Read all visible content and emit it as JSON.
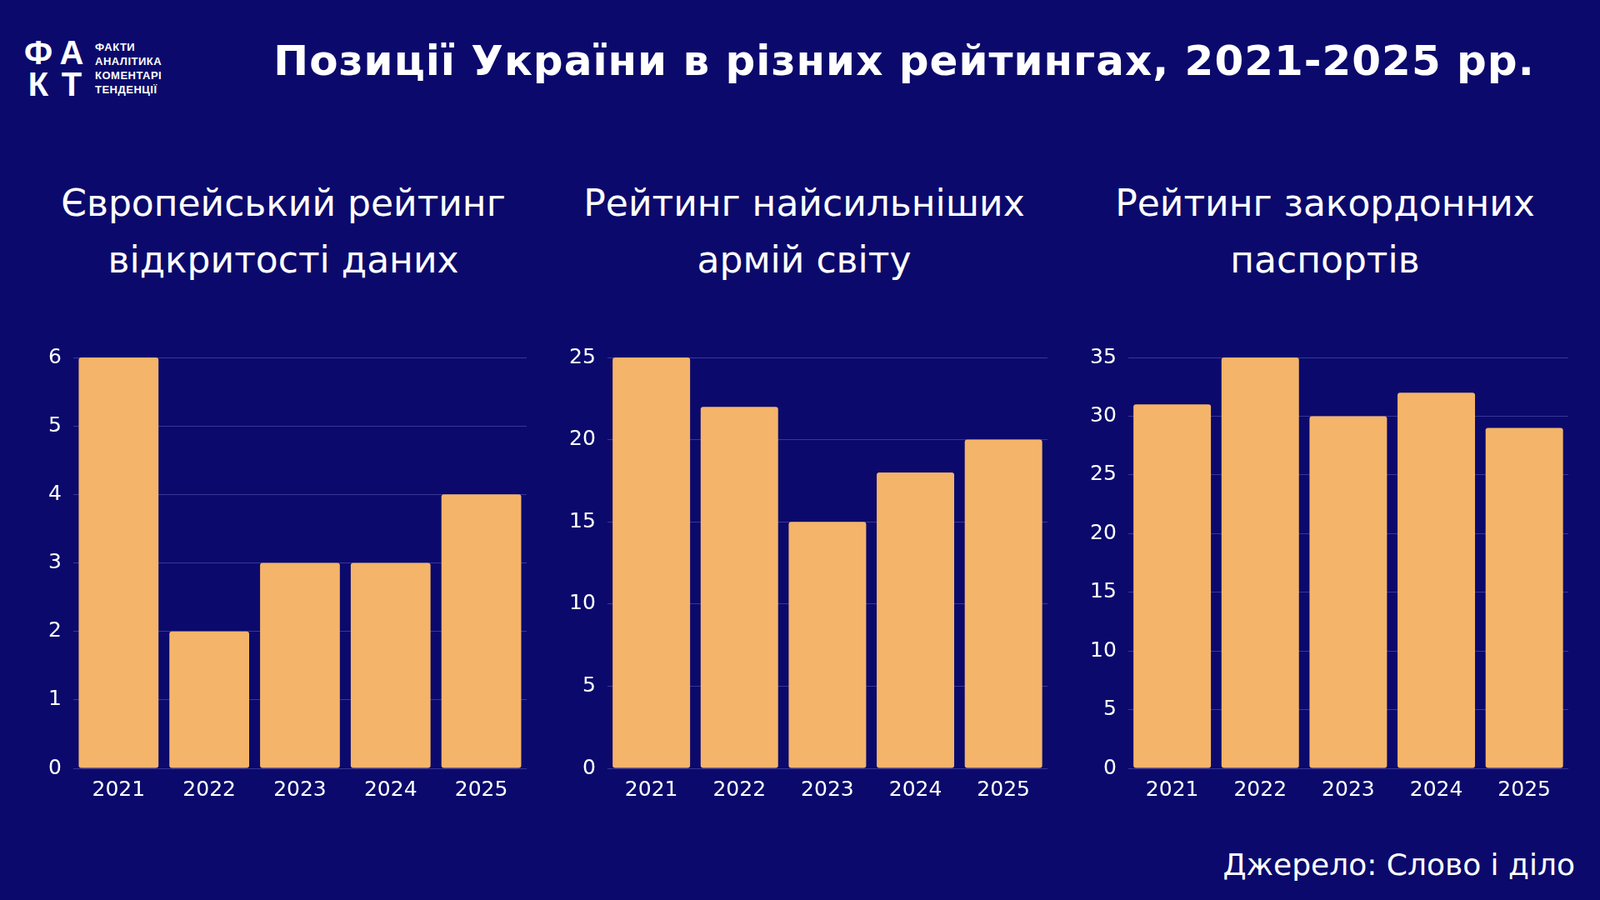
{
  "header": {
    "title": "Позиції України в різних рейтингах, 2021-2025 рр.",
    "logo": {
      "mark": [
        "Ф",
        "А",
        "К",
        "Т"
      ],
      "lines": [
        "ФАКТИ",
        "АНАЛІТИКА",
        "КОМЕНТАРІ",
        "ТЕНДЕНЦІЇ"
      ]
    }
  },
  "source": "Джерело: Слово і діло",
  "chart_data": [
    {
      "type": "bar",
      "title": "Європейський рейтинг відкритості даних",
      "categories": [
        "2021",
        "2022",
        "2023",
        "2024",
        "2025"
      ],
      "values": [
        6,
        2,
        3,
        3,
        4
      ],
      "color": "#f4b46a",
      "ylim": [
        0,
        6
      ],
      "yticks": [
        0,
        1,
        2,
        3,
        4,
        5,
        6
      ],
      "grid": true
    },
    {
      "type": "bar",
      "title": "Рейтинг найсильніших армій світу",
      "categories": [
        "2021",
        "2022",
        "2023",
        "2024",
        "2025"
      ],
      "values": [
        25,
        22,
        15,
        18,
        20
      ],
      "color": "#f4b46a",
      "ylim": [
        0,
        25
      ],
      "yticks": [
        0,
        5,
        10,
        15,
        20,
        25
      ],
      "grid": true
    },
    {
      "type": "bar",
      "title": "Рейтинг закордонних паспортів",
      "categories": [
        "2021",
        "2022",
        "2023",
        "2024",
        "2025"
      ],
      "values": [
        31,
        35,
        30,
        32,
        29
      ],
      "color": "#f4b46a",
      "ylim": [
        0,
        35
      ],
      "yticks": [
        0,
        5,
        10,
        15,
        20,
        25,
        30,
        35
      ],
      "grid": true
    }
  ]
}
